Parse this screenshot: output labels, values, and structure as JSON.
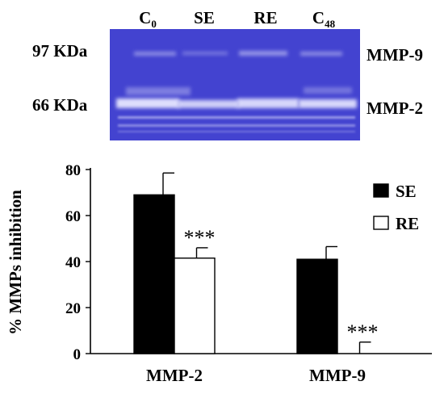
{
  "gel": {
    "lanes": [
      {
        "main": "C",
        "sub": "0"
      },
      {
        "main": "SE",
        "sub": ""
      },
      {
        "main": "RE",
        "sub": ""
      },
      {
        "main": "C",
        "sub": "48"
      }
    ],
    "left_labels": [
      "97 KDa",
      "66 KDa"
    ],
    "right_labels": [
      "MMP-9",
      "MMP-2"
    ],
    "background_color": "#4343d0",
    "band_color": "#e8e8ff"
  },
  "chart_data": {
    "type": "bar",
    "categories": [
      "MMP-2",
      "MMP-9"
    ],
    "series": [
      {
        "name": "SE",
        "values": [
          69,
          41
        ],
        "errors": [
          9.5,
          5.5
        ],
        "color": "#000000"
      },
      {
        "name": "RE",
        "values": [
          41.5,
          0
        ],
        "errors": [
          4.5,
          5
        ],
        "color": "#ffffff"
      }
    ],
    "ylabel": "% MMPs inhibition",
    "ylim": [
      0,
      80
    ],
    "yticks": [
      0,
      20,
      40,
      60,
      80
    ],
    "legend_position": "top-right",
    "annotations": [
      {
        "category": "MMP-2",
        "series": "RE",
        "text": "***"
      },
      {
        "category": "MMP-9",
        "series": "RE",
        "text": "***"
      }
    ],
    "grid": false
  }
}
